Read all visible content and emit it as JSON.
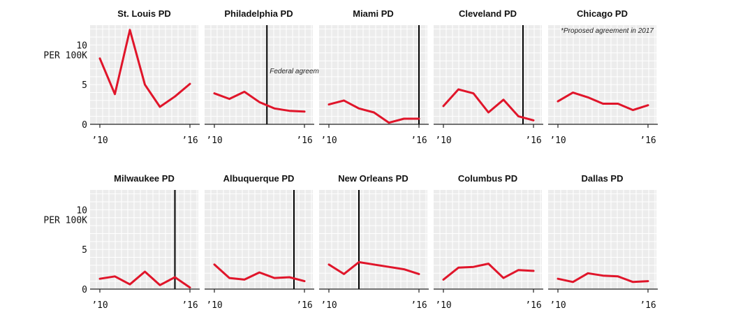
{
  "colors": {
    "line": "#e0152a",
    "panel_bg": "#ececec",
    "grid": "#ffffff",
    "marker": "#000000",
    "axis": "#222222"
  },
  "y_axis_label": "PER 100K",
  "chart_data": {
    "type": "line",
    "x": [
      2010,
      2011,
      2012,
      2013,
      2014,
      2015,
      2016
    ],
    "x_tick_labels": [
      "’10",
      "’16"
    ],
    "ylim": [
      0,
      12.5
    ],
    "y_ticks": [
      0,
      5,
      10
    ],
    "grid": true,
    "panels": [
      {
        "title": "St. Louis PD",
        "values": [
          8.3,
          3.8,
          11.9,
          5.0,
          2.2,
          3.5,
          5.1
        ]
      },
      {
        "title": "Philadelphia PD",
        "values": [
          3.9,
          3.2,
          4.1,
          2.8,
          2.0,
          1.7,
          1.6
        ],
        "marker_x": 2013.5,
        "annotation": "Federal agreement"
      },
      {
        "title": "Miami PD",
        "values": [
          2.5,
          3.0,
          2.0,
          1.5,
          0.2,
          0.7,
          0.7
        ],
        "marker_x": 2016
      },
      {
        "title": "Cleveland PD",
        "values": [
          2.3,
          4.4,
          3.9,
          1.5,
          3.1,
          1.0,
          0.5
        ],
        "marker_x": 2015.3
      },
      {
        "title": "Chicago PD",
        "values": [
          2.9,
          4.0,
          3.4,
          2.6,
          2.6,
          1.8,
          2.4
        ],
        "annotation": "*Proposed agreement in 2017"
      },
      {
        "title": "Milwaukee PD",
        "values": [
          1.3,
          1.6,
          0.6,
          2.2,
          0.5,
          1.5,
          0.2
        ],
        "marker_x": 2015
      },
      {
        "title": "Albuquerque PD",
        "values": [
          3.1,
          1.4,
          1.2,
          2.1,
          1.4,
          1.5,
          1.0
        ],
        "marker_x": 2015.3
      },
      {
        "title": "New Orleans PD",
        "values": [
          3.1,
          1.9,
          3.4,
          3.1,
          2.8,
          2.5,
          1.9
        ],
        "marker_x": 2012
      },
      {
        "title": "Columbus PD",
        "values": [
          1.2,
          2.7,
          2.8,
          3.2,
          1.4,
          2.4,
          2.3
        ]
      },
      {
        "title": "Dallas PD",
        "values": [
          1.3,
          0.9,
          2.0,
          1.7,
          1.6,
          0.9,
          1.0
        ]
      }
    ]
  }
}
